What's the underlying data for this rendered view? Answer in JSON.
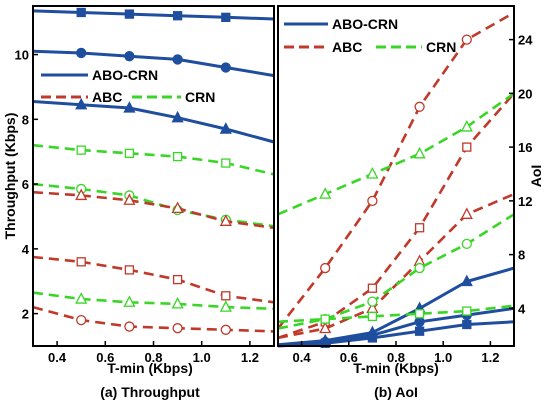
{
  "chart_data": [
    {
      "type": "line",
      "caption": "(a) Throughput",
      "xlabel": "T-min (Kbps)",
      "ylabel": "Throughput (Kbps)",
      "xlim": [
        0.3,
        1.3
      ],
      "ylim": [
        1,
        11.5
      ],
      "xticks": [
        0.4,
        0.6,
        0.8,
        1.0,
        1.2
      ],
      "xtick_labels": [
        "0.4",
        "0.6",
        "0.8",
        "1.0",
        "1.2"
      ],
      "yticks": [
        2,
        4,
        6,
        8,
        10
      ],
      "ytick_labels": [
        "2",
        "4",
        "6",
        "8",
        "10"
      ],
      "x": [
        0.3,
        0.5,
        0.7,
        0.9,
        1.1,
        1.3
      ],
      "legend": {
        "position": "upper-left",
        "entries": [
          "ABO-CRN",
          "ABC",
          "CRN"
        ]
      },
      "series": [
        {
          "name": "ABO-CRN",
          "group": "ABO-CRN",
          "marker": "square",
          "filled": true,
          "values": [
            11.35,
            11.3,
            11.25,
            11.2,
            11.15,
            11.1
          ]
        },
        {
          "name": "ABO-CRN",
          "group": "ABO-CRN",
          "marker": "circle",
          "filled": true,
          "values": [
            10.1,
            10.05,
            9.95,
            9.85,
            9.6,
            9.35
          ]
        },
        {
          "name": "ABO-CRN",
          "group": "ABO-CRN",
          "marker": "triangle",
          "filled": true,
          "values": [
            8.55,
            8.45,
            8.35,
            8.05,
            7.7,
            7.3
          ]
        },
        {
          "name": "CRN",
          "group": "CRN",
          "marker": "square",
          "filled": false,
          "values": [
            7.2,
            7.05,
            6.95,
            6.85,
            6.65,
            6.3
          ]
        },
        {
          "name": "CRN",
          "group": "CRN",
          "marker": "circle",
          "filled": false,
          "values": [
            6.0,
            5.85,
            5.65,
            5.2,
            4.9,
            4.7
          ]
        },
        {
          "name": "ABC",
          "group": "ABC",
          "marker": "triangle",
          "filled": false,
          "values": [
            5.75,
            5.65,
            5.5,
            5.25,
            4.85,
            4.65
          ]
        },
        {
          "name": "ABC",
          "group": "ABC",
          "marker": "square",
          "filled": false,
          "values": [
            3.75,
            3.6,
            3.35,
            3.05,
            2.55,
            2.35
          ]
        },
        {
          "name": "CRN",
          "group": "CRN",
          "marker": "triangle",
          "filled": false,
          "values": [
            2.65,
            2.45,
            2.35,
            2.3,
            2.2,
            2.15
          ]
        },
        {
          "name": "ABC",
          "group": "ABC",
          "marker": "circle",
          "filled": false,
          "values": [
            2.2,
            1.8,
            1.6,
            1.55,
            1.5,
            1.45
          ]
        }
      ]
    },
    {
      "type": "line",
      "caption": "(b) AoI",
      "xlabel": "T-min (Kbps)",
      "ylabel": "AoI",
      "xlim": [
        0.3,
        1.3
      ],
      "ylim": [
        1.2,
        26.5
      ],
      "xticks": [
        0.4,
        0.6,
        0.8,
        1.0,
        1.2
      ],
      "xtick_labels": [
        "0.4",
        "0.6",
        "0.8",
        "1.0",
        "1.2"
      ],
      "yticks": [
        4,
        8,
        12,
        16,
        20,
        24
      ],
      "ytick_labels": [
        "4",
        "8",
        "12",
        "16",
        "20",
        "24"
      ],
      "y_axis_side": "right",
      "x": [
        0.3,
        0.5,
        0.7,
        0.9,
        1.1,
        1.3
      ],
      "legend": {
        "position": "upper-left",
        "entries": [
          "ABO-CRN",
          "ABC",
          "CRN"
        ]
      },
      "series": [
        {
          "name": "ABO-CRN",
          "group": "ABO-CRN",
          "marker": "triangle",
          "filled": true,
          "values": [
            1.3,
            1.6,
            2.2,
            4.0,
            6.0,
            7.0
          ]
        },
        {
          "name": "ABO-CRN",
          "group": "ABO-CRN",
          "marker": "circle",
          "filled": true,
          "values": [
            1.25,
            1.5,
            2.0,
            3.0,
            3.5,
            4.0
          ]
        },
        {
          "name": "ABO-CRN",
          "group": "ABO-CRN",
          "marker": "square",
          "filled": true,
          "values": [
            1.2,
            1.4,
            1.8,
            2.3,
            2.8,
            3.0
          ]
        },
        {
          "name": "ABC",
          "group": "ABC",
          "marker": "circle",
          "filled": false,
          "values": [
            2.5,
            7.0,
            12.0,
            19.0,
            24.0,
            26.0
          ]
        },
        {
          "name": "ABC",
          "group": "ABC",
          "marker": "square",
          "filled": false,
          "values": [
            1.8,
            3.0,
            5.5,
            10.0,
            16.0,
            20.0
          ]
        },
        {
          "name": "ABC",
          "group": "ABC",
          "marker": "triangle",
          "filled": false,
          "values": [
            1.8,
            2.5,
            4.0,
            7.5,
            11.0,
            12.5
          ]
        },
        {
          "name": "CRN",
          "group": "CRN",
          "marker": "triangle",
          "filled": false,
          "values": [
            11.0,
            12.5,
            14.0,
            15.5,
            17.5,
            20.0
          ]
        },
        {
          "name": "CRN",
          "group": "CRN",
          "marker": "circle",
          "filled": false,
          "values": [
            2.5,
            3.2,
            4.5,
            7.0,
            8.8,
            11.0
          ]
        },
        {
          "name": "CRN",
          "group": "CRN",
          "marker": "square",
          "filled": false,
          "values": [
            3.0,
            3.2,
            3.4,
            3.6,
            3.8,
            4.2
          ]
        }
      ]
    }
  ],
  "colors": {
    "ABO-CRN": "#1f4e9e",
    "ABC": "#c0392b",
    "CRN": "#39d627",
    "axes": "#000000",
    "background": "#ffffff"
  }
}
